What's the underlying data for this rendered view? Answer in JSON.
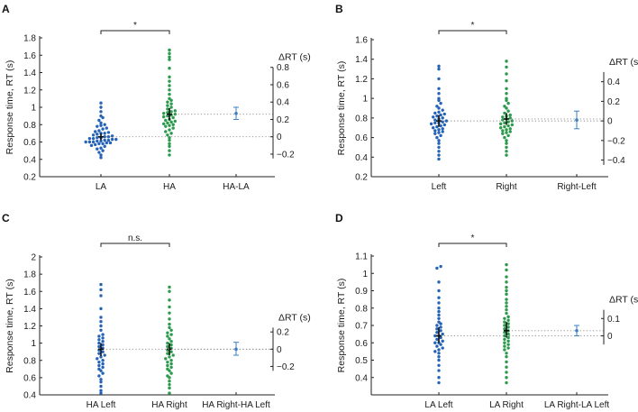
{
  "colors": {
    "left": "#2563b8",
    "right": "#2b9a4c",
    "diff": "#3a7fc4",
    "axis": "#222222"
  },
  "chart_data": [
    {
      "type": "scatter",
      "panel": "A",
      "ylabel": "Response time, RT (s)",
      "categories": [
        "LA",
        "HA",
        "HA-LA"
      ],
      "ylim": [
        0.2,
        1.8
      ],
      "yticks": [
        0.2,
        0.4,
        0.6,
        0.8,
        1,
        1.2,
        1.4,
        1.6,
        1.8
      ],
      "ytick_labels": [
        "0.2",
        "0.4",
        "0.6",
        "0.8",
        "1",
        "1.2",
        "1.4",
        "1.6",
        "1.8"
      ],
      "series": [
        {
          "name": "LA",
          "mean": 0.66,
          "ci": [
            0.62,
            0.7
          ],
          "values": [
            0.42,
            0.45,
            0.48,
            0.5,
            0.52,
            0.53,
            0.55,
            0.56,
            0.57,
            0.58,
            0.58,
            0.59,
            0.59,
            0.6,
            0.6,
            0.6,
            0.61,
            0.61,
            0.62,
            0.62,
            0.63,
            0.63,
            0.64,
            0.64,
            0.65,
            0.65,
            0.66,
            0.66,
            0.67,
            0.68,
            0.69,
            0.7,
            0.7,
            0.71,
            0.72,
            0.73,
            0.75,
            0.76,
            0.78,
            0.79,
            0.8,
            0.82,
            0.85,
            0.88,
            0.9,
            0.95,
            1.0,
            1.05
          ]
        },
        {
          "name": "HA",
          "mean": 0.92,
          "ci": [
            0.85,
            0.99
          ],
          "values": [
            0.45,
            0.5,
            0.55,
            0.58,
            0.62,
            0.65,
            0.68,
            0.7,
            0.72,
            0.74,
            0.76,
            0.78,
            0.79,
            0.8,
            0.81,
            0.82,
            0.83,
            0.84,
            0.85,
            0.86,
            0.88,
            0.89,
            0.9,
            0.91,
            0.92,
            0.93,
            0.94,
            0.95,
            0.96,
            0.98,
            1.0,
            1.02,
            1.04,
            1.06,
            1.08,
            1.1,
            1.15,
            1.2,
            1.25,
            1.3,
            1.35,
            1.45,
            1.55,
            1.58,
            1.62,
            1.66
          ]
        }
      ],
      "diff": {
        "label": "HA-LA",
        "mean": 0.27,
        "ci": [
          0.2,
          0.34
        ]
      },
      "significance": "*",
      "delta_axis": {
        "label": "ΔRT (s)",
        "range": [
          -0.25,
          0.8
        ],
        "ticks": [
          -0.2,
          0,
          0.2,
          0.4,
          0.6,
          0.8
        ],
        "tick_labels": [
          "−0.2",
          "0",
          "0.2",
          "0.4",
          "0.6",
          "0.8"
        ]
      }
    },
    {
      "type": "scatter",
      "panel": "B",
      "ylabel": "Response time, RT (s)",
      "categories": [
        "Left",
        "Right",
        "Right-Left"
      ],
      "ylim": [
        0.2,
        1.6
      ],
      "yticks": [
        0.2,
        0.4,
        0.6,
        0.8,
        1,
        1.2,
        1.4,
        1.6
      ],
      "ytick_labels": [
        "0.2",
        "0.4",
        "0.6",
        "0.8",
        "1",
        "1.2",
        "1.4",
        "1.6"
      ],
      "series": [
        {
          "name": "Left",
          "mean": 0.77,
          "ci": [
            0.71,
            0.83
          ],
          "values": [
            0.38,
            0.42,
            0.46,
            0.5,
            0.54,
            0.57,
            0.6,
            0.62,
            0.64,
            0.65,
            0.66,
            0.67,
            0.68,
            0.69,
            0.7,
            0.71,
            0.72,
            0.73,
            0.74,
            0.75,
            0.75,
            0.76,
            0.77,
            0.78,
            0.79,
            0.8,
            0.81,
            0.82,
            0.83,
            0.84,
            0.85,
            0.86,
            0.88,
            0.9,
            0.92,
            0.95,
            0.98,
            1.0,
            1.05,
            1.1,
            1.2,
            1.3,
            1.33
          ]
        },
        {
          "name": "Right",
          "mean": 0.79,
          "ci": [
            0.73,
            0.85
          ],
          "values": [
            0.42,
            0.46,
            0.5,
            0.54,
            0.57,
            0.6,
            0.62,
            0.64,
            0.65,
            0.66,
            0.67,
            0.68,
            0.69,
            0.7,
            0.71,
            0.72,
            0.73,
            0.74,
            0.75,
            0.76,
            0.77,
            0.78,
            0.79,
            0.8,
            0.81,
            0.82,
            0.83,
            0.85,
            0.87,
            0.9,
            0.92,
            0.95,
            0.98,
            1.0,
            1.05,
            1.1,
            1.18,
            1.25,
            1.32,
            1.38
          ]
        }
      ],
      "diff": {
        "label": "Right-Left",
        "mean": 0.01,
        "ci": [
          -0.08,
          0.1
        ]
      },
      "significance": "*",
      "delta_axis": {
        "label": "ΔRT (s)",
        "range": [
          -0.45,
          0.5
        ],
        "ticks": [
          -0.4,
          -0.2,
          0,
          0.2,
          0.4
        ],
        "tick_labels": [
          "−0.4",
          "−0.2",
          "0",
          "0.2",
          "0.4"
        ]
      }
    },
    {
      "type": "scatter",
      "panel": "C",
      "ylabel": "Response time, RT (s)",
      "categories": [
        "HA Left",
        "HA Right",
        "HA Right-HA Left"
      ],
      "ylim": [
        0.4,
        2.0
      ],
      "yticks": [
        0.4,
        0.6,
        0.8,
        1,
        1.2,
        1.4,
        1.6,
        1.8,
        2
      ],
      "ytick_labels": [
        "0.4",
        "0.6",
        "0.8",
        "1",
        "1.2",
        "1.4",
        "1.6",
        "1.8",
        "2"
      ],
      "series": [
        {
          "name": "HA Left",
          "mean": 0.93,
          "ci": [
            0.85,
            1.0
          ],
          "values": [
            0.42,
            0.45,
            0.5,
            0.55,
            0.58,
            0.62,
            0.65,
            0.68,
            0.7,
            0.72,
            0.74,
            0.76,
            0.78,
            0.8,
            0.82,
            0.84,
            0.86,
            0.88,
            0.9,
            0.92,
            0.94,
            0.96,
            0.98,
            1.0,
            1.02,
            1.04,
            1.06,
            1.08,
            1.1,
            1.15,
            1.2,
            1.25,
            1.3,
            1.4,
            1.55,
            1.62,
            1.68
          ]
        },
        {
          "name": "HA Right",
          "mean": 0.93,
          "ci": [
            0.86,
            1.0
          ],
          "values": [
            0.42,
            0.48,
            0.52,
            0.56,
            0.6,
            0.62,
            0.65,
            0.68,
            0.7,
            0.72,
            0.74,
            0.76,
            0.78,
            0.8,
            0.82,
            0.84,
            0.86,
            0.88,
            0.9,
            0.92,
            0.94,
            0.96,
            0.98,
            1.0,
            1.02,
            1.05,
            1.08,
            1.1,
            1.12,
            1.15,
            1.18,
            1.22,
            1.28,
            1.35,
            1.42,
            1.5,
            1.6,
            1.65
          ]
        }
      ],
      "diff": {
        "label": "HA Right-HA Left",
        "mean": 0.0,
        "ci": [
          -0.07,
          0.08
        ]
      },
      "significance": "n.s.",
      "delta_axis": {
        "label": "ΔRT (s)",
        "range": [
          -0.25,
          0.25
        ],
        "ticks": [
          -0.2,
          0,
          0.2
        ],
        "tick_labels": [
          "−0.2",
          "0",
          "0.2"
        ]
      }
    },
    {
      "type": "scatter",
      "panel": "D",
      "ylabel": "Response time, RT (s)",
      "categories": [
        "LA Left",
        "LA Right",
        "LA Right-LA Left"
      ],
      "ylim": [
        0.3,
        1.1
      ],
      "yticks": [
        0.4,
        0.5,
        0.6,
        0.7,
        0.8,
        0.9,
        1,
        1.1
      ],
      "ytick_labels": [
        "0.4",
        "0.5",
        "0.6",
        "0.7",
        "0.8",
        "0.9",
        "1",
        "1.1"
      ],
      "series": [
        {
          "name": "LA Left",
          "mean": 0.64,
          "ci": [
            0.6,
            0.69
          ],
          "values": [
            0.37,
            0.4,
            0.44,
            0.47,
            0.5,
            0.52,
            0.54,
            0.55,
            0.56,
            0.57,
            0.58,
            0.59,
            0.6,
            0.6,
            0.61,
            0.62,
            0.63,
            0.64,
            0.64,
            0.65,
            0.66,
            0.67,
            0.68,
            0.69,
            0.7,
            0.71,
            0.72,
            0.74,
            0.76,
            0.78,
            0.8,
            0.83,
            0.86,
            0.9,
            0.95,
            1.03,
            1.04
          ]
        },
        {
          "name": "LA Right",
          "mean": 0.67,
          "ci": [
            0.63,
            0.72
          ],
          "values": [
            0.37,
            0.4,
            0.43,
            0.46,
            0.49,
            0.52,
            0.54,
            0.56,
            0.57,
            0.58,
            0.59,
            0.6,
            0.61,
            0.62,
            0.63,
            0.64,
            0.65,
            0.66,
            0.67,
            0.68,
            0.69,
            0.7,
            0.71,
            0.72,
            0.73,
            0.74,
            0.75,
            0.77,
            0.79,
            0.81,
            0.83,
            0.85,
            0.88,
            0.9,
            0.92,
            0.95,
            0.98,
            1.02,
            1.05
          ]
        }
      ],
      "diff": {
        "label": "LA Right-LA Left",
        "mean": 0.03,
        "ci": [
          0.0,
          0.06
        ]
      },
      "significance": "*",
      "delta_axis": {
        "label": "ΔRT (s)",
        "range": [
          -0.05,
          0.15
        ],
        "ticks": [
          0,
          0.1
        ],
        "tick_labels": [
          "0",
          "0.1"
        ]
      }
    }
  ]
}
